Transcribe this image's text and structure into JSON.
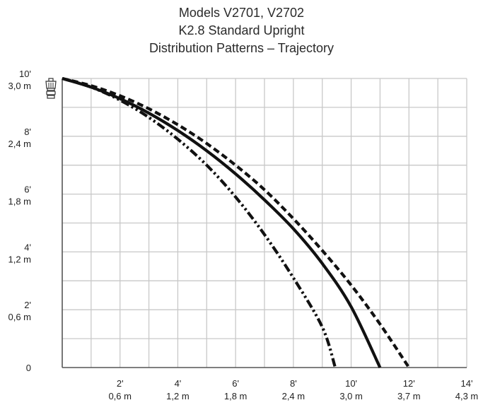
{
  "chart_data": {
    "type": "line",
    "title": "Models V2701, V2702",
    "subtitle_1": "K2.8 Standard Upright",
    "subtitle_2": "Distribution Patterns – Trajectory",
    "xlabel": "",
    "ylabel": "",
    "xlim": [
      0,
      14
    ],
    "ylim": [
      0,
      10
    ],
    "grid": true,
    "x_ticks": [
      {
        "value": 2,
        "label_ft": "2'",
        "label_m": "0,6 m"
      },
      {
        "value": 4,
        "label_ft": "4'",
        "label_m": "1,2 m"
      },
      {
        "value": 6,
        "label_ft": "6'",
        "label_m": "1,8 m"
      },
      {
        "value": 8,
        "label_ft": "8'",
        "label_m": "2,4 m"
      },
      {
        "value": 10,
        "label_ft": "10'",
        "label_m": "3,0 m"
      },
      {
        "value": 12,
        "label_ft": "12'",
        "label_m": "3,7 m"
      },
      {
        "value": 14,
        "label_ft": "14'",
        "label_m": "4,3 m"
      }
    ],
    "y_ticks": [
      {
        "value": 10,
        "label_ft": "10'",
        "label_m": "3,0 m"
      },
      {
        "value": 8,
        "label_ft": "8'",
        "label_m": "2,4 m"
      },
      {
        "value": 6,
        "label_ft": "6'",
        "label_m": "1,8 m"
      },
      {
        "value": 4,
        "label_ft": "4'",
        "label_m": "1,2 m"
      },
      {
        "value": 2,
        "label_ft": "2'",
        "label_m": "0,6 m"
      },
      {
        "value": 0,
        "label_ft": "0",
        "label_m": ""
      }
    ],
    "series": [
      {
        "style": "dotted",
        "color": "#111111",
        "points": [
          [
            0,
            10
          ],
          [
            1,
            9.75
          ],
          [
            2,
            9.4
          ],
          [
            3,
            8.95
          ],
          [
            4,
            8.4
          ],
          [
            5,
            7.75
          ],
          [
            6,
            7.0
          ],
          [
            7,
            6.15
          ],
          [
            8,
            5.15
          ],
          [
            9,
            4.05
          ],
          [
            10,
            2.85
          ],
          [
            11,
            1.5
          ],
          [
            12,
            0
          ]
        ]
      },
      {
        "style": "solid",
        "color": "#111111",
        "points": [
          [
            0,
            10
          ],
          [
            1,
            9.7
          ],
          [
            2,
            9.3
          ],
          [
            3,
            8.8
          ],
          [
            4,
            8.2
          ],
          [
            5,
            7.5
          ],
          [
            6,
            6.7
          ],
          [
            7,
            5.8
          ],
          [
            8,
            4.8
          ],
          [
            9,
            3.6
          ],
          [
            10,
            2.1
          ],
          [
            11,
            0
          ]
        ]
      },
      {
        "style": "dash-dot-dot",
        "color": "#111111",
        "points": [
          [
            0,
            10
          ],
          [
            1,
            9.7
          ],
          [
            2,
            9.25
          ],
          [
            3,
            8.65
          ],
          [
            4,
            7.9
          ],
          [
            5,
            7.0
          ],
          [
            6,
            5.9
          ],
          [
            7,
            4.6
          ],
          [
            8,
            3.1
          ],
          [
            9,
            1.4
          ],
          [
            9.45,
            0
          ]
        ]
      }
    ]
  },
  "icons": {
    "sprinkler_head": "sprinkler-head-icon"
  },
  "colors": {
    "grid": "#c8c8c8",
    "axis": "#555555",
    "curve": "#111111"
  }
}
